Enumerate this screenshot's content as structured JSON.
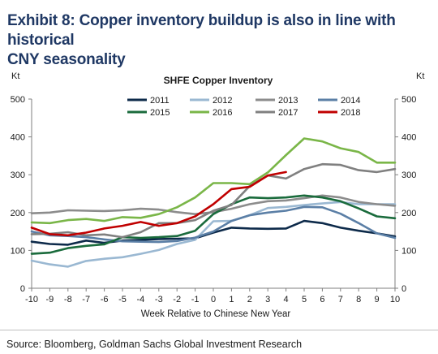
{
  "exhibit": {
    "title_line1": "Exhibit 8: Copper inventory buildup is also in line with historical",
    "title_line2": "CNY seasonality"
  },
  "source": "Source: Bloomberg, Goldman Sachs Global Investment Research",
  "chart_data": {
    "type": "line",
    "title": "SHFE Copper Inventory",
    "xlabel": "Week Relative to Chinese New Year",
    "ylabel_left": "Kt",
    "ylabel_right": "Kt",
    "x": [
      -10,
      -9,
      -8,
      -7,
      -6,
      -5,
      -4,
      -3,
      -2,
      -1,
      0,
      1,
      2,
      3,
      4,
      5,
      6,
      7,
      8,
      9,
      10
    ],
    "x_tick_labels": [
      "-10",
      "-9",
      "-8",
      "-7",
      "-6",
      "-5",
      "-4",
      "-3",
      "-2",
      "-1",
      "0",
      "1",
      "2",
      "3",
      "4",
      "5",
      "6",
      "7",
      "8",
      "9",
      "10"
    ],
    "ylim": [
      0,
      500
    ],
    "y_ticks": [
      0,
      100,
      200,
      300,
      400,
      500
    ],
    "y_tick_labels": [
      "0",
      "100",
      "200",
      "300",
      "400",
      "500"
    ],
    "grid": false,
    "legend_position": "top-center",
    "series": [
      {
        "name": "2011",
        "color": "#0d2a4a",
        "values": [
          123,
          117,
          115,
          126,
          120,
          126,
          128,
          130,
          131,
          132,
          147,
          160,
          158,
          157,
          158,
          178,
          172,
          160,
          152,
          145,
          137
        ]
      },
      {
        "name": "2012",
        "color": "#9ab8d2",
        "values": [
          73,
          63,
          57,
          72,
          78,
          82,
          91,
          101,
          117,
          128,
          177,
          178,
          193,
          212,
          215,
          220,
          224,
          228,
          222,
          222,
          222
        ]
      },
      {
        "name": "2013",
        "color": "#8c8c8c",
        "values": [
          198,
          200,
          206,
          205,
          204,
          206,
          210,
          208,
          201,
          196,
          201,
          210,
          222,
          230,
          232,
          238,
          245,
          240,
          228,
          222,
          218
        ]
      },
      {
        "name": "2014",
        "color": "#5b7fa6",
        "values": [
          150,
          140,
          138,
          135,
          129,
          124,
          123,
          122,
          125,
          134,
          150,
          178,
          193,
          200,
          205,
          215,
          214,
          197,
          172,
          145,
          133
        ]
      },
      {
        "name": "2015",
        "color": "#1a6b3c",
        "values": [
          91,
          94,
          106,
          112,
          116,
          135,
          133,
          135,
          138,
          152,
          196,
          222,
          240,
          238,
          240,
          245,
          240,
          230,
          211,
          190,
          185
        ]
      },
      {
        "name": "2016",
        "color": "#7ab648",
        "values": [
          174,
          172,
          180,
          183,
          178,
          188,
          186,
          196,
          214,
          240,
          278,
          278,
          275,
          306,
          352,
          396,
          388,
          370,
          360,
          332,
          332
        ]
      },
      {
        "name": "2017",
        "color": "#808080",
        "values": [
          143,
          144,
          148,
          140,
          142,
          135,
          148,
          172,
          172,
          180,
          205,
          220,
          270,
          298,
          290,
          315,
          328,
          326,
          312,
          307,
          315
        ]
      },
      {
        "name": "2018",
        "color": "#c00000",
        "values": [
          160,
          143,
          140,
          147,
          158,
          165,
          175,
          165,
          172,
          190,
          222,
          262,
          268,
          298,
          307,
          null,
          null,
          null,
          null,
          null,
          null
        ]
      }
    ],
    "legend_rows": [
      [
        "2011",
        "2012",
        "2013",
        "2014"
      ],
      [
        "2015",
        "2016",
        "2017",
        "2018"
      ]
    ]
  }
}
